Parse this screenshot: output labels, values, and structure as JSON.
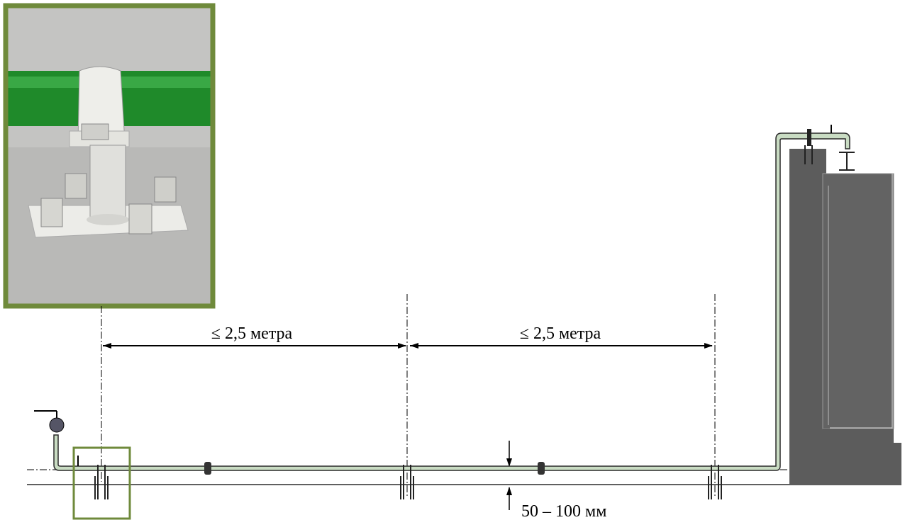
{
  "dimensions": [
    {
      "label": "≤ 2,5 метра"
    },
    {
      "label": "≤ 2,5 метра"
    }
  ],
  "clearance": {
    "label": "50 – 100 мм"
  }
}
